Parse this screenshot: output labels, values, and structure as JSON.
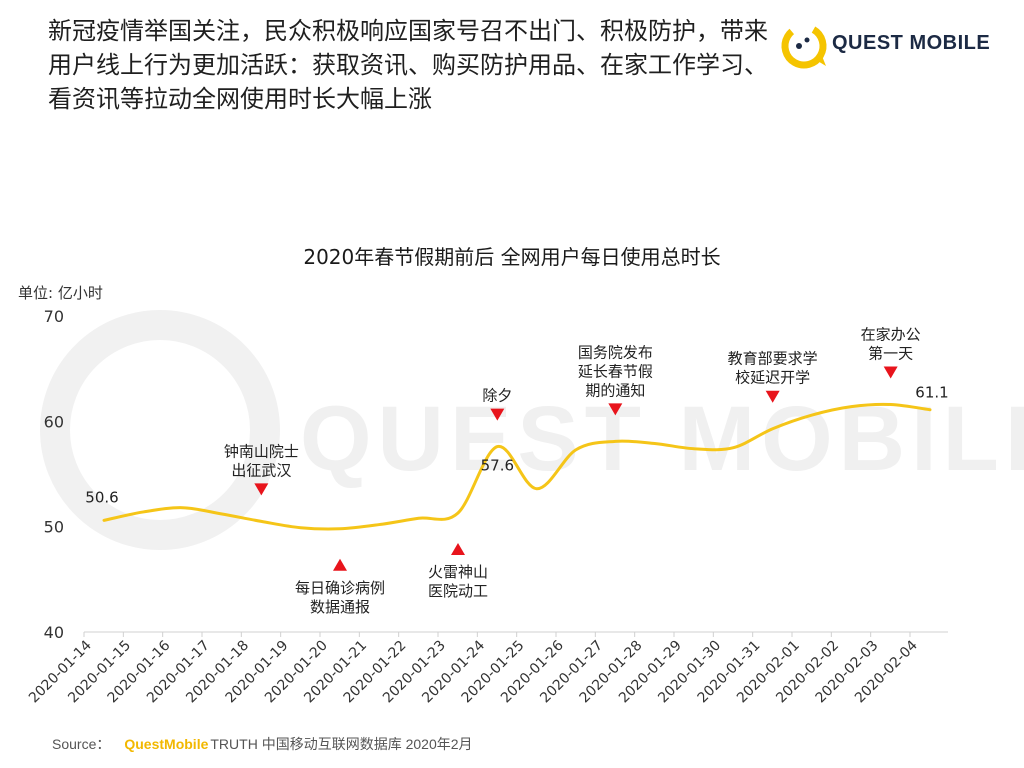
{
  "headline": "新冠疫情举国关注，民众积极响应国家号召不出门、积极防护，带来用户线上行为更加活跃：获取资讯、购买防护用品、在家工作学习、看资讯等拉动全网使用时长大幅上涨",
  "logo": {
    "text": "QUEST MOBILE",
    "color": "#f5c400"
  },
  "watermark": "QUEST MOBILE",
  "source": {
    "label": "Source：",
    "brand": "QuestMobile",
    "rest": "TRUTH 中国移动互联网数据库 2020年2月"
  },
  "chart_data": {
    "type": "line",
    "title": "2020年春节假期前后 全网用户每日使用总时长",
    "unit_label": "单位: 亿小时",
    "ylim": [
      40,
      70
    ],
    "yticks": [
      40,
      50,
      60,
      70
    ],
    "grid": false,
    "line_color": "#f5c518",
    "marker_color": "#e8141c",
    "x": [
      "2020-01-14",
      "2020-01-15",
      "2020-01-16",
      "2020-01-17",
      "2020-01-18",
      "2020-01-19",
      "2020-01-20",
      "2020-01-21",
      "2020-01-22",
      "2020-01-23",
      "2020-01-24",
      "2020-01-25",
      "2020-01-26",
      "2020-01-27",
      "2020-01-28",
      "2020-01-29",
      "2020-01-30",
      "2020-01-31",
      "2020-02-01",
      "2020-02-02",
      "2020-02-03",
      "2020-02-04"
    ],
    "series": [
      {
        "values": [
          50.6,
          51.4,
          51.8,
          51.2,
          50.5,
          49.9,
          49.8,
          50.2,
          50.8,
          51.3,
          57.6,
          53.6,
          57.3,
          58.1,
          57.9,
          57.4,
          57.5,
          59.3,
          60.6,
          61.4,
          61.6,
          61.1
        ]
      }
    ],
    "data_labels": [
      {
        "x": "2020-01-14",
        "text": "50.6"
      },
      {
        "x": "2020-01-24",
        "text": "57.6"
      },
      {
        "x": "2020-02-04",
        "text": "61.1"
      }
    ],
    "annotations": [
      {
        "x": "2020-01-18",
        "direction": "down",
        "lines": [
          "钟南山院士",
          "出征武汉"
        ]
      },
      {
        "x": "2020-01-20",
        "direction": "up",
        "lines": [
          "每日确诊病例",
          "数据通报"
        ]
      },
      {
        "x": "2020-01-23",
        "direction": "up",
        "lines": [
          "火雷神山",
          "医院动工"
        ]
      },
      {
        "x": "2020-01-24",
        "direction": "down",
        "lines": [
          "除夕"
        ]
      },
      {
        "x": "2020-01-27",
        "direction": "down",
        "lines": [
          "国务院发布",
          "延长春节假",
          "期的通知"
        ]
      },
      {
        "x": "2020-01-31",
        "direction": "down",
        "lines": [
          "教育部要求学",
          "校延迟开学"
        ]
      },
      {
        "x": "2020-02-03",
        "direction": "down",
        "lines": [
          "在家办公",
          "第一天"
        ]
      }
    ]
  }
}
